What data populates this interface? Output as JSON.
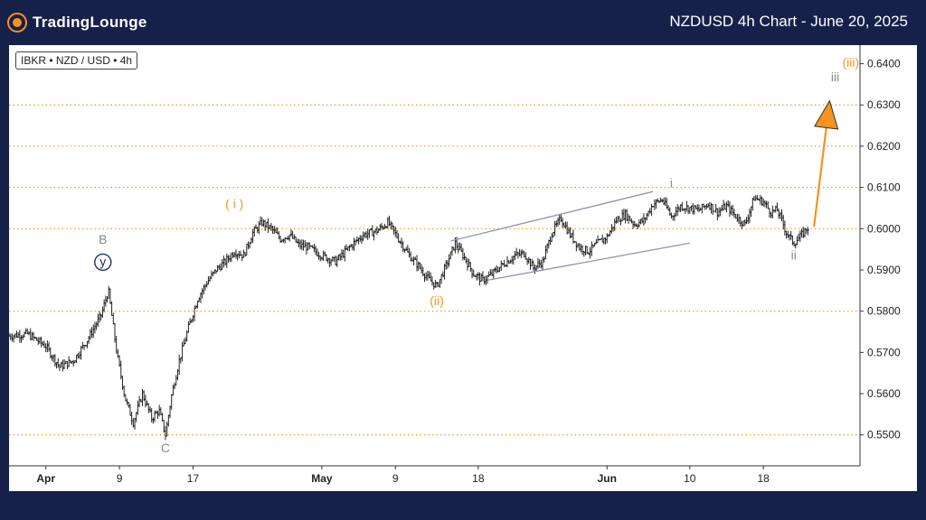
{
  "header": {
    "brand": "TradingLounge",
    "title": "NZDUSD 4h Chart - June 20, 2025"
  },
  "chart_label": "IBKR • NZD / USD • 4h",
  "colors": {
    "background": "#152149",
    "accent": "#f7931e",
    "candle": "#222222",
    "channel": "#8a93b5",
    "wave_gray": "#8a8a8a",
    "wave_navy": "#1f2f66"
  },
  "chart_data": {
    "type": "candlestick",
    "symbol": "NZDUSD",
    "timeframe": "4h",
    "ylim": [
      0.5425,
      0.6445
    ],
    "y_ticks": [
      "0.6400",
      "0.6300",
      "0.6200",
      "0.6100",
      "0.6000",
      "0.5900",
      "0.5800",
      "0.5700",
      "0.5600",
      "0.5500"
    ],
    "x_ticks": [
      {
        "label": "Apr",
        "day": 1
      },
      {
        "label": "9",
        "day": 9
      },
      {
        "label": "17",
        "day": 17
      },
      {
        "label": "May",
        "day": 31
      },
      {
        "label": "9",
        "day": 39
      },
      {
        "label": "18",
        "day": 48
      },
      {
        "label": "Jun",
        "day": 62
      },
      {
        "label": "10",
        "day": 71
      },
      {
        "label": "18",
        "day": 79
      }
    ],
    "x_range_days": [
      -3.0,
      89.5
    ],
    "price_path": [
      [
        -3.0,
        0.574
      ],
      [
        -1.0,
        0.5745
      ],
      [
        1.0,
        0.5715
      ],
      [
        2.5,
        0.5665
      ],
      [
        4.0,
        0.568
      ],
      [
        5.5,
        0.573
      ],
      [
        7.0,
        0.579
      ],
      [
        7.8,
        0.585
      ],
      [
        8.7,
        0.57
      ],
      [
        9.6,
        0.559
      ],
      [
        10.5,
        0.553
      ],
      [
        11.5,
        0.56
      ],
      [
        12.5,
        0.554
      ],
      [
        13.3,
        0.556
      ],
      [
        14.0,
        0.55
      ],
      [
        14.7,
        0.56
      ],
      [
        15.5,
        0.568
      ],
      [
        16.5,
        0.576
      ],
      [
        17.5,
        0.583
      ],
      [
        18.5,
        0.587
      ],
      [
        19.5,
        0.59
      ],
      [
        20.5,
        0.592
      ],
      [
        21.5,
        0.5945
      ],
      [
        22.5,
        0.5935
      ],
      [
        23.5,
        0.599
      ],
      [
        24.5,
        0.6015
      ],
      [
        25.5,
        0.6
      ],
      [
        26.5,
        0.5975
      ],
      [
        27.5,
        0.5985
      ],
      [
        28.5,
        0.596
      ],
      [
        29.5,
        0.5955
      ],
      [
        31.0,
        0.5935
      ],
      [
        32.5,
        0.592
      ],
      [
        34.0,
        0.5955
      ],
      [
        35.5,
        0.5985
      ],
      [
        37.0,
        0.5995
      ],
      [
        38.2,
        0.6015
      ],
      [
        39.5,
        0.597
      ],
      [
        40.5,
        0.5935
      ],
      [
        41.5,
        0.591
      ],
      [
        42.5,
        0.588
      ],
      [
        43.5,
        0.586
      ],
      [
        44.5,
        0.591
      ],
      [
        45.5,
        0.5965
      ],
      [
        46.5,
        0.593
      ],
      [
        47.5,
        0.589
      ],
      [
        48.5,
        0.5875
      ],
      [
        49.5,
        0.589
      ],
      [
        50.5,
        0.591
      ],
      [
        52.0,
        0.5935
      ],
      [
        53.0,
        0.594
      ],
      [
        54.0,
        0.5905
      ],
      [
        55.0,
        0.592
      ],
      [
        56.0,
        0.599
      ],
      [
        57.0,
        0.6025
      ],
      [
        58.0,
        0.5985
      ],
      [
        59.0,
        0.5955
      ],
      [
        60.0,
        0.5945
      ],
      [
        61.0,
        0.5965
      ],
      [
        62.0,
        0.598
      ],
      [
        63.0,
        0.602
      ],
      [
        64.0,
        0.6035
      ],
      [
        65.0,
        0.601
      ],
      [
        66.0,
        0.602
      ],
      [
        67.0,
        0.606
      ],
      [
        68.0,
        0.607
      ],
      [
        69.0,
        0.603
      ],
      [
        70.0,
        0.6055
      ],
      [
        71.0,
        0.605
      ],
      [
        72.0,
        0.6045
      ],
      [
        73.0,
        0.606
      ],
      [
        74.0,
        0.604
      ],
      [
        75.0,
        0.6055
      ],
      [
        76.0,
        0.603
      ],
      [
        77.0,
        0.601
      ],
      [
        78.0,
        0.6075
      ],
      [
        79.0,
        0.6065
      ],
      [
        79.8,
        0.604
      ],
      [
        80.5,
        0.6045
      ],
      [
        81.0,
        0.602
      ],
      [
        81.5,
        0.599
      ],
      [
        82.3,
        0.5965
      ],
      [
        83.0,
        0.598
      ],
      [
        83.7,
        0.6
      ],
      [
        84.0,
        0.6005
      ]
    ],
    "horizontal_levels": [
      0.63,
      0.62,
      0.61,
      0.6,
      0.58,
      0.55
    ],
    "channel_lines": [
      {
        "from": [
          45.0,
          0.597
        ],
        "to": [
          67.0,
          0.609
        ]
      },
      {
        "from": [
          49.0,
          0.5875
        ],
        "to": [
          71.0,
          0.5965
        ]
      }
    ],
    "projection_arrow": {
      "from": [
        84.5,
        0.6005
      ],
      "to": [
        86.2,
        0.631
      ]
    },
    "wave_labels": [
      {
        "text": "B",
        "day": 7.2,
        "price": 0.5963,
        "color": "wave_gray"
      },
      {
        "text": "y",
        "day": 7.2,
        "price": 0.591,
        "color": "wave_navy",
        "circled": true
      },
      {
        "text": "C",
        "day": 14.0,
        "price": 0.5458,
        "color": "wave_gray"
      },
      {
        "text": "( i )",
        "day": 21.5,
        "price": 0.605,
        "color": "accent"
      },
      {
        "text": "(ii)",
        "day": 43.5,
        "price": 0.5815,
        "color": "accent"
      },
      {
        "text": "i",
        "day": 69.0,
        "price": 0.61,
        "color": "wave_gray"
      },
      {
        "text": "ii",
        "day": 82.3,
        "price": 0.5925,
        "color": "wave_gray"
      },
      {
        "text": "iii",
        "day": 86.8,
        "price": 0.6357,
        "color": "wave_gray"
      },
      {
        "text": "(iii)",
        "day": 88.5,
        "price": 0.6393,
        "color": "accent"
      }
    ]
  }
}
